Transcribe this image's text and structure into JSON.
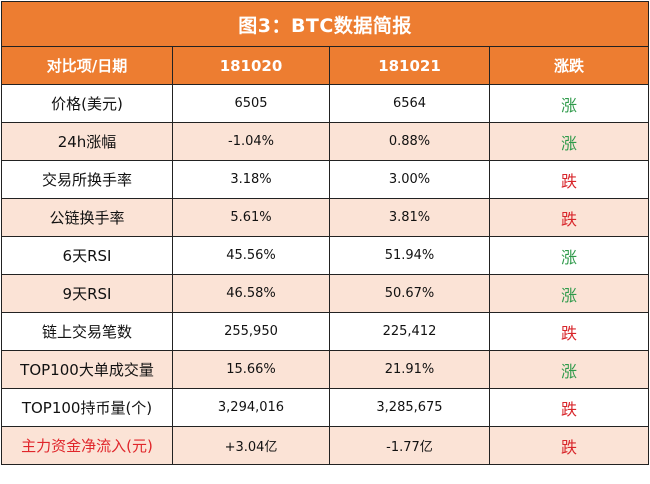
{
  "title": "图3：BTC数据简报",
  "headers": [
    "对比项/日期",
    "181020",
    "181021",
    "涨跌"
  ],
  "rows": [
    {
      "label": "价格(美元)",
      "v1": "6505",
      "v2": "6564",
      "dir": "涨"
    },
    {
      "label": "24h涨幅",
      "v1": "-1.04%",
      "v2": "0.88%",
      "dir": "涨"
    },
    {
      "label": "交易所换手率",
      "v1": "3.18%",
      "v2": "3.00%",
      "dir": "跌"
    },
    {
      "label": "公链换手率",
      "v1": "5.61%",
      "v2": "3.81%",
      "dir": "跌"
    },
    {
      "label": "6天RSI",
      "v1": "45.56%",
      "v2": "51.94%",
      "dir": "涨"
    },
    {
      "label": "9天RSI",
      "v1": "46.58%",
      "v2": "50.67%",
      "dir": "涨"
    },
    {
      "label": "链上交易笔数",
      "v1": "255,950",
      "v2": "225,412",
      "dir": "跌"
    },
    {
      "label": "TOP100大单成交量",
      "v1": "15.66%",
      "v2": "21.91%",
      "dir": "涨"
    },
    {
      "label": "TOP100持币量(个)",
      "v1": "3,294,016",
      "v2": "3,285,675",
      "dir": "跌"
    },
    {
      "label": "主力资金净流入(元)",
      "v1": "+3.04亿",
      "v2": "-1.77亿",
      "dir": "跌"
    }
  ],
  "colors": {
    "header_bg": "#ed7d31",
    "alt_row_bg": "#fbe3d6",
    "up": "#2e9a4a",
    "down": "#d8262b"
  }
}
